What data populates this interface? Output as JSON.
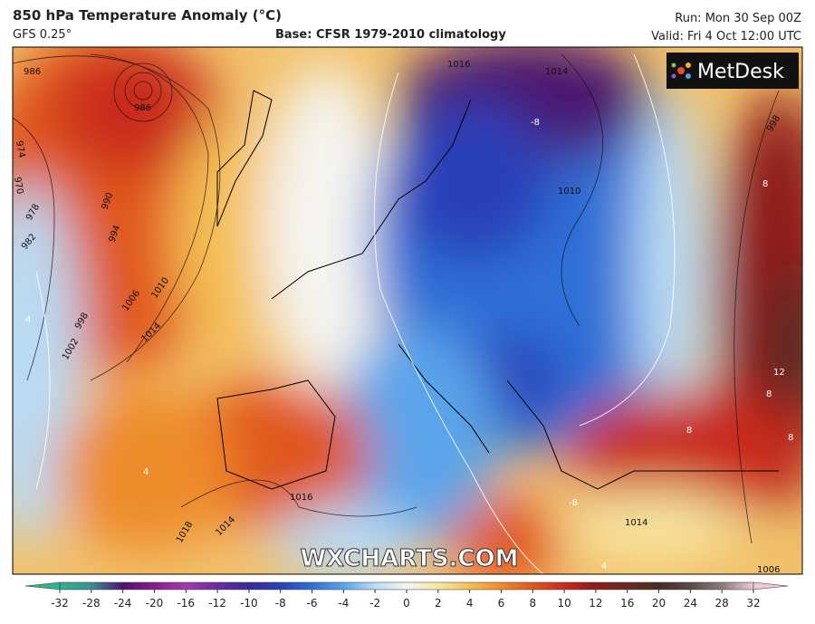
{
  "header": {
    "title": "850 hPa Temperature Anomaly (°C)",
    "model": "GFS 0.25°",
    "base": "Base: CFSR 1979-2010 climatology",
    "run": "Run: Mon 30 Sep 00Z",
    "valid": "Valid: Fri 4 Oct 12:00 UTC"
  },
  "logo": "MetDesk",
  "watermark": "WXCHARTS.COM",
  "map": {
    "isobar_labels": [
      "986",
      "986",
      "974",
      "970",
      "978",
      "982",
      "990",
      "994",
      "1006",
      "1010",
      "998",
      "1002",
      "1014",
      "1016",
      "1018",
      "1014",
      "1014",
      "1010",
      "1016",
      "1014",
      "998",
      "1006"
    ],
    "anomaly_labels": [
      "-8",
      "8",
      "12",
      "8",
      "8",
      "8",
      "-8",
      "4",
      "4",
      "4"
    ]
  },
  "colorbar": {
    "ticks": [
      -32,
      -28,
      -24,
      -20,
      -16,
      -12,
      -10,
      -8,
      -6,
      -4,
      -2,
      0,
      2,
      4,
      6,
      8,
      10,
      12,
      16,
      20,
      24,
      28,
      32
    ],
    "colors": [
      "#2fb38f",
      "#3a8f94",
      "#4b1470",
      "#8a1d8c",
      "#a23bb0",
      "#6a2c9a",
      "#3a2a9a",
      "#2a3fb8",
      "#2f6fd6",
      "#5aa4ea",
      "#b9dcf6",
      "#f4f4f0",
      "#f7e6a0",
      "#f4bf55",
      "#ee8b2c",
      "#e0561c",
      "#c92a1c",
      "#8e1c1c",
      "#6a2a24",
      "#4a2a26",
      "#5c4a48",
      "#8a7a7a",
      "#f0c8d8"
    ]
  }
}
